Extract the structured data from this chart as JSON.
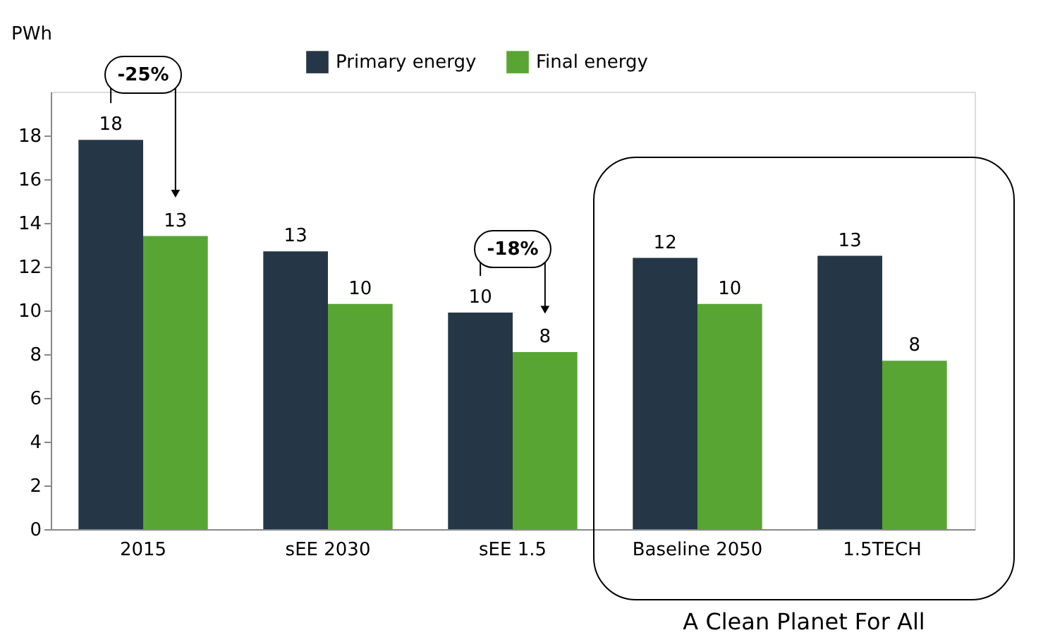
{
  "chart_data": {
    "type": "bar",
    "ylabel": "PWh",
    "categories": [
      "2015",
      "sEE 2030",
      "sEE 1.5",
      "Baseline 2050",
      "1.5TECH"
    ],
    "series": [
      {
        "name": "Primary energy",
        "color": "#253746",
        "values": [
          17.8,
          12.7,
          9.9,
          12.4,
          12.5
        ],
        "value_labels": [
          "18",
          "13",
          "10",
          "12",
          "13"
        ]
      },
      {
        "name": "Final energy",
        "color": "#58a534",
        "values": [
          13.4,
          10.3,
          8.1,
          10.3,
          7.7
        ],
        "value_labels": [
          "13",
          "10",
          "8",
          "10",
          "8"
        ]
      }
    ],
    "ylim": [
      0,
      20
    ],
    "yticks": [
      0,
      2,
      4,
      6,
      8,
      10,
      12,
      14,
      16,
      18
    ],
    "grid": false,
    "legend": "top",
    "annotations": [
      "-25%",
      "-18%",
      "A Clean Planet For All"
    ]
  }
}
